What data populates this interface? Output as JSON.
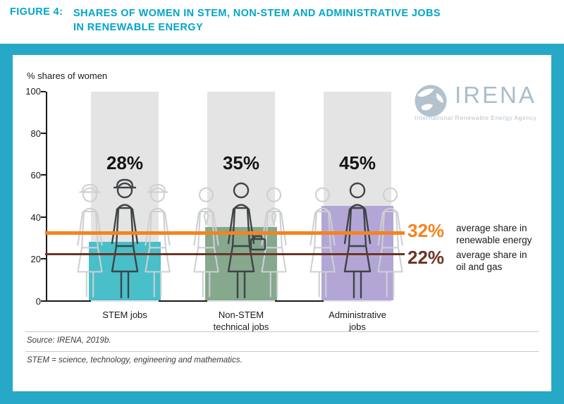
{
  "figure": {
    "label": "FIGURE 4:",
    "title_line1": "SHARES OF WOMEN IN STEM, NON-STEM AND ADMINISTRATIVE JOBS",
    "title_line2": "IN RENEWABLE ENERGY"
  },
  "chart": {
    "axis_title": "% shares of women",
    "y_ticks": [
      "100",
      "80",
      "60",
      "40",
      "20",
      "0"
    ],
    "categories": [
      {
        "value_label": "28%",
        "label_line1": "STEM jobs",
        "label_line2": ""
      },
      {
        "value_label": "35%",
        "label_line1": "Non-STEM",
        "label_line2": "technical jobs"
      },
      {
        "value_label": "45%",
        "label_line1": "Administrative",
        "label_line2": "jobs"
      }
    ],
    "reference_labels": [
      {
        "value_label": "32%",
        "label_line1": "average share in",
        "label_line2": "renewable energy"
      },
      {
        "value_label": "22%",
        "label_line1": "average share in",
        "label_line2": "oil and gas"
      }
    ]
  },
  "logo": {
    "name": "IRENA",
    "subtitle": "International Renewable Energy Agency"
  },
  "footer": {
    "source": "Source: IRENA, 2019b.",
    "note": "STEM = science, technology, engineering and mathematics."
  },
  "colors": {
    "frame_teal": "#27a8c6",
    "title_teal": "#00a5c8"
  },
  "chart_data": {
    "type": "bar",
    "title": "Shares of women in STEM, non-STEM and administrative jobs in renewable energy",
    "categories": [
      "STEM jobs",
      "Non-STEM technical jobs",
      "Administrative jobs"
    ],
    "values": [
      28,
      35,
      45
    ],
    "unit": "%",
    "ylabel": "% shares of women",
    "ylim": [
      0,
      100
    ],
    "yticks": [
      0,
      20,
      40,
      60,
      80,
      100
    ],
    "bar_colors": [
      "#48bfc9",
      "#86a88d",
      "#b3a6d6"
    ],
    "reference_lines": [
      {
        "value": 32,
        "label": "average share in renewable energy",
        "color": "#f5831f"
      },
      {
        "value": 22,
        "label": "average share in oil and gas",
        "color": "#6b3423"
      }
    ],
    "grid": false,
    "legend_position": "none"
  }
}
